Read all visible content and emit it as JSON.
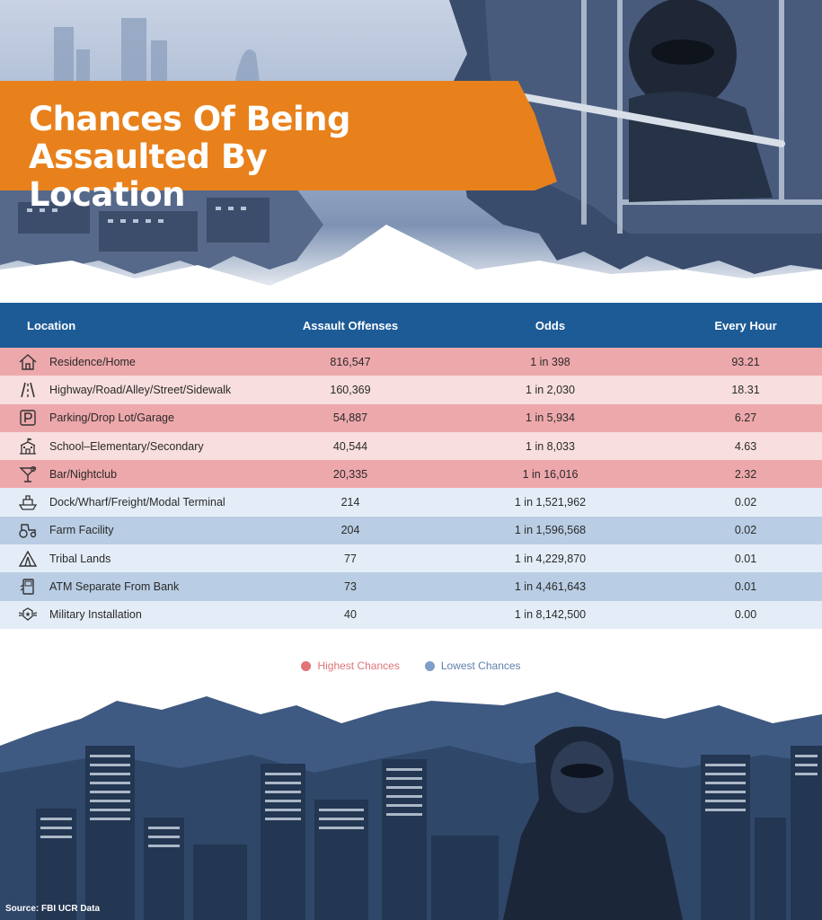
{
  "header": {
    "title": "Chances Of Being Assaulted By Location"
  },
  "columns": {
    "location": "Location",
    "offenses": "Assault Offenses",
    "odds": "Odds",
    "hour": "Every Hour"
  },
  "colors": {
    "banner": "#e8811c",
    "header": "#1d5b96",
    "highest": "#eda8ab",
    "highest_light": "#f8dede",
    "lowest": "#b9cde4",
    "lowest_light": "#e4edf7",
    "highest_dot": "#e07477",
    "lowest_dot": "#7f9fc9"
  },
  "rows": [
    {
      "location": "Residence/Home",
      "offenses": "816,547",
      "odds": "1 in 398",
      "hour": "93.21",
      "icon": "house-icon",
      "group": "high"
    },
    {
      "location": "Highway/Road/Alley/Street/Sidewalk",
      "offenses": "160,369",
      "odds": "1 in 2,030",
      "hour": "18.31",
      "icon": "road-icon",
      "group": "high"
    },
    {
      "location": "Parking/Drop Lot/Garage",
      "offenses": "54,887",
      "odds": "1 in 5,934",
      "hour": "6.27",
      "icon": "parking-icon",
      "group": "high"
    },
    {
      "location": "School–Elementary/Secondary",
      "offenses": "40,544",
      "odds": "1 in 8,033",
      "hour": "4.63",
      "icon": "school-icon",
      "group": "high"
    },
    {
      "location": "Bar/Nightclub",
      "offenses": "20,335",
      "odds": "1 in 16,016",
      "hour": "2.32",
      "icon": "cocktail-icon",
      "group": "high"
    },
    {
      "location": "Dock/Wharf/Freight/Modal Terminal",
      "offenses": "214",
      "odds": "1 in 1,521,962",
      "hour": "0.02",
      "icon": "ship-icon",
      "group": "low"
    },
    {
      "location": "Farm Facility",
      "offenses": "204",
      "odds": "1 in 1,596,568",
      "hour": "0.02",
      "icon": "tractor-icon",
      "group": "low"
    },
    {
      "location": "Tribal Lands",
      "offenses": "77",
      "odds": "1 in 4,229,870",
      "hour": "0.01",
      "icon": "tent-icon",
      "group": "low"
    },
    {
      "location": "ATM Separate From Bank",
      "offenses": "73",
      "odds": "1 in 4,461,643",
      "hour": "0.01",
      "icon": "atm-icon",
      "group": "low"
    },
    {
      "location": "Military Installation",
      "offenses": "40",
      "odds": "1 in 8,142,500",
      "hour": "0.00",
      "icon": "military-badge-icon",
      "group": "low"
    }
  ],
  "legend": {
    "highest": "Highest Chances",
    "lowest": "Lowest Chances"
  },
  "source": "Source: FBI UCR Data",
  "chart_data": {
    "type": "table",
    "title": "Chances Of Being Assaulted By Location",
    "columns": [
      "Location",
      "Assault Offenses",
      "Odds",
      "Every Hour"
    ],
    "rows": [
      [
        "Residence/Home",
        816547,
        "1 in 398",
        93.21
      ],
      [
        "Highway/Road/Alley/Street/Sidewalk",
        160369,
        "1 in 2,030",
        18.31
      ],
      [
        "Parking/Drop Lot/Garage",
        54887,
        "1 in 5,934",
        6.27
      ],
      [
        "School–Elementary/Secondary",
        40544,
        "1 in 8,033",
        4.63
      ],
      [
        "Bar/Nightclub",
        20335,
        "1 in 16,016",
        2.32
      ],
      [
        "Dock/Wharf/Freight/Modal Terminal",
        214,
        "1 in 1,521,962",
        0.02
      ],
      [
        "Farm Facility",
        204,
        "1 in 1,596,568",
        0.02
      ],
      [
        "Tribal Lands",
        77,
        "1 in 4,229,870",
        0.01
      ],
      [
        "ATM Separate From Bank",
        73,
        "1 in 4,461,643",
        0.01
      ],
      [
        "Military Installation",
        40,
        "1 in 8,142,500",
        0.0
      ]
    ],
    "groups": {
      "Highest Chances": [
        0,
        1,
        2,
        3,
        4
      ],
      "Lowest Chances": [
        5,
        6,
        7,
        8,
        9
      ]
    },
    "legend": [
      "Highest Chances",
      "Lowest Chances"
    ],
    "legend_position": "bottom-center"
  }
}
